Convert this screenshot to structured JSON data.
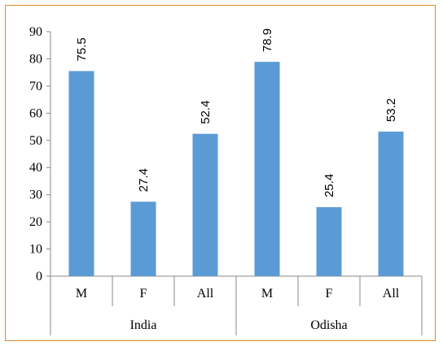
{
  "chart_data": {
    "type": "bar",
    "groups": [
      {
        "name": "India",
        "categories": [
          "M",
          "F",
          "All"
        ],
        "values": [
          75.5,
          27.4,
          52.4
        ]
      },
      {
        "name": "Odisha",
        "categories": [
          "M",
          "F",
          "All"
        ],
        "values": [
          78.9,
          25.4,
          53.2
        ]
      }
    ],
    "data_labels": [
      "75.5",
      "27.4",
      "52.4",
      "78.9",
      "25.4",
      "53.2"
    ],
    "ylim": [
      0,
      90
    ],
    "yticks": [
      0,
      10,
      20,
      30,
      40,
      50,
      60,
      70,
      80,
      90
    ],
    "bar_color": "#5b9bd5",
    "border_color": "#d98c2b",
    "grid": false,
    "title": "",
    "xlabel": "",
    "ylabel": ""
  }
}
